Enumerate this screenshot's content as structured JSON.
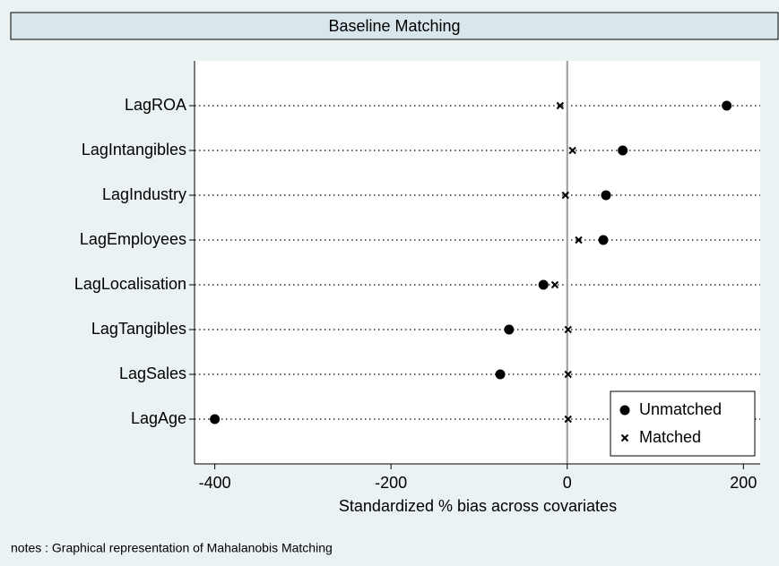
{
  "chart_data": {
    "type": "dot",
    "title": "Baseline Matching",
    "categories": [
      "LagROA",
      "LagIntangibles",
      "LagIndustry",
      "LagEmployees",
      "LagLocalisation",
      "LagTangibles",
      "LagSales",
      "LagAge"
    ],
    "series": [
      {
        "name": "Unmatched",
        "color": "#000000",
        "marker": "circle",
        "values": [
          181,
          63,
          44,
          41,
          -27,
          -66,
          -76,
          -400
        ]
      },
      {
        "name": "Matched",
        "color": "#000000",
        "marker": "x",
        "values": [
          -8,
          6,
          -2,
          13,
          -14,
          1,
          1,
          1
        ]
      }
    ],
    "xlim": [
      -423,
      219
    ],
    "xticks": [
      -400,
      -200,
      0,
      200
    ],
    "xlabel": "Standardized % bias across covariates",
    "reference_line": 0,
    "grid": true,
    "legend": "bottom-right",
    "notes": "notes : Graphical representation of Mahalanobis Matching"
  }
}
